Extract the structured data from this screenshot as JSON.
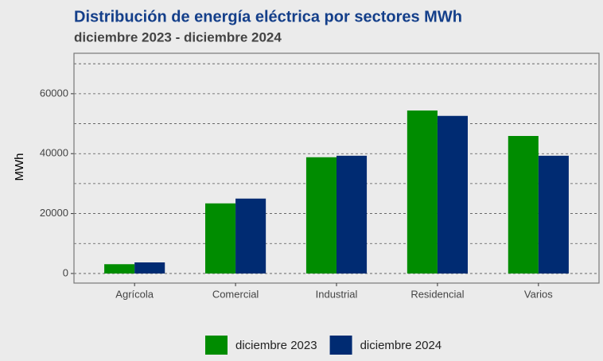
{
  "chart_data": {
    "type": "bar",
    "title": "Distribución de energía eléctrica por sectores MWh",
    "subtitle": "diciembre 2023 - diciembre 2024",
    "y_label": "MWh",
    "categories": [
      "Agrícola",
      "Comercial",
      "Industrial",
      "Residencial",
      "Varios"
    ],
    "series": [
      {
        "name": "diciembre 2023",
        "color": "#008c00",
        "values": [
          3100,
          23400,
          38800,
          54400,
          45900
        ]
      },
      {
        "name": "diciembre 2024",
        "color": "#002b72",
        "values": [
          3700,
          25000,
          39300,
          52600,
          39300
        ]
      }
    ],
    "ylim": [
      -3200,
      73500
    ],
    "yticks": [
      0,
      20000,
      40000,
      60000
    ],
    "minor_yticks": [
      10000,
      30000,
      50000,
      70000
    ],
    "grid": true,
    "legend": "bottom"
  }
}
